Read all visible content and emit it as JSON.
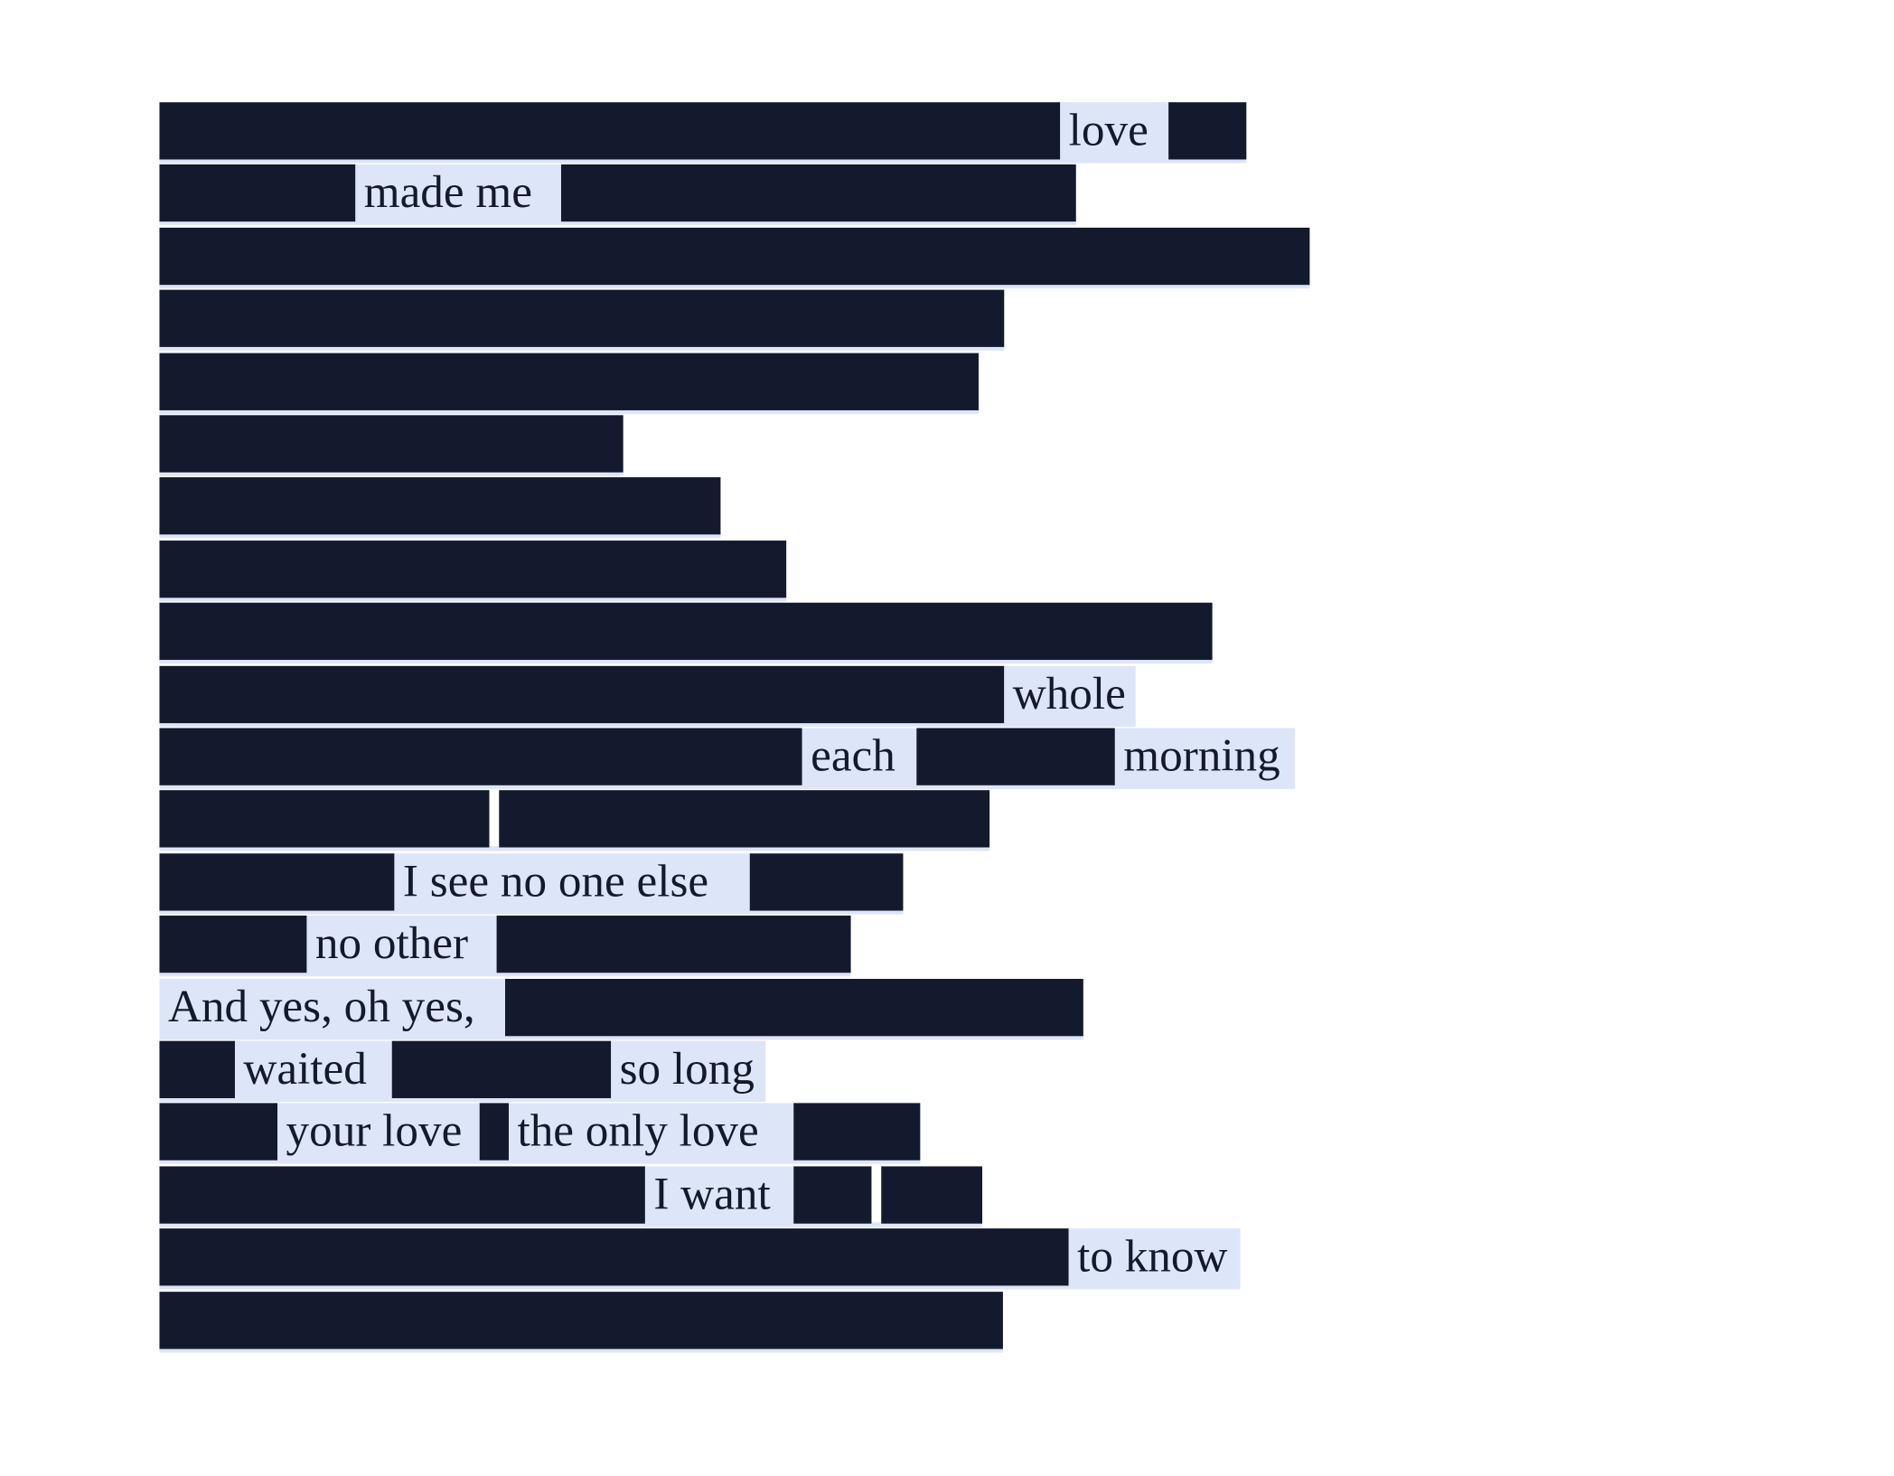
{
  "poem": {
    "lines": [
      [
        "love"
      ],
      [
        "made me"
      ],
      [],
      [],
      [],
      [],
      [],
      [],
      [],
      [
        "whole"
      ],
      [
        "each",
        "morning"
      ],
      [],
      [
        "I see no one else"
      ],
      [
        "no other"
      ],
      [
        "And yes, oh yes,"
      ],
      [
        "waited",
        "so long"
      ],
      [
        "your love",
        "the only love"
      ],
      [
        "I want"
      ],
      [
        "to know"
      ],
      []
    ]
  }
}
